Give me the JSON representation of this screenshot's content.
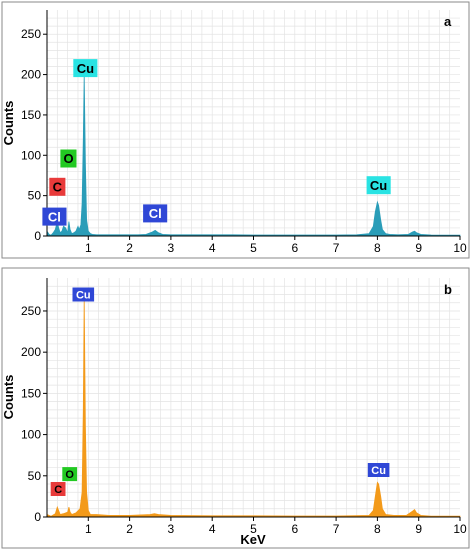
{
  "chart_data": [
    {
      "type": "area",
      "panel_letter": "a",
      "ylabel": "Counts",
      "xlabel": "",
      "xlim": [
        0,
        10
      ],
      "ylim": [
        0,
        280
      ],
      "xticks": [
        "1",
        "2",
        "3",
        "4",
        "5",
        "6",
        "7",
        "8",
        "9",
        "10"
      ],
      "yticks": [
        "0",
        "50",
        "100",
        "150",
        "200",
        "250"
      ],
      "grid": true,
      "fill_color": "#2a9db8",
      "series": [
        {
          "x": [
            0.0,
            0.05,
            0.1,
            0.15,
            0.2,
            0.25,
            0.28,
            0.32,
            0.36,
            0.4,
            0.45,
            0.5,
            0.53,
            0.56,
            0.6,
            0.65,
            0.7,
            0.75,
            0.78,
            0.82,
            0.85,
            0.88,
            0.9,
            0.93,
            0.96,
            1.0,
            1.05,
            1.1,
            1.2,
            1.4,
            1.6,
            1.8,
            2.0,
            2.2,
            2.4,
            2.55,
            2.62,
            2.7,
            2.8,
            3.0,
            3.5,
            4.0,
            4.5,
            5.0,
            5.5,
            6.0,
            6.5,
            7.0,
            7.5,
            7.8,
            7.9,
            7.95,
            8.0,
            8.03,
            8.08,
            8.12,
            8.2,
            8.3,
            8.5,
            8.75,
            8.85,
            8.9,
            8.95,
            9.05,
            9.3,
            9.6,
            10.0
          ],
          "y": [
            6,
            2,
            1,
            4,
            8,
            18,
            10,
            4,
            6,
            12,
            10,
            4,
            18,
            8,
            3,
            4,
            6,
            12,
            8,
            14,
            40,
            120,
            200,
            90,
            20,
            6,
            3,
            2,
            1.5,
            1.5,
            1.5,
            1.5,
            1.5,
            1.5,
            2,
            5,
            7,
            4,
            2,
            1.5,
            1.5,
            1.5,
            1.5,
            1.2,
            1.2,
            1.2,
            1.2,
            1.2,
            1.5,
            3,
            12,
            30,
            42,
            38,
            20,
            8,
            3,
            2,
            1.5,
            2,
            5,
            6,
            4,
            2,
            1.2,
            1,
            1
          ]
        }
      ],
      "annotations": [
        {
          "text": "Cu",
          "x": 0.93,
          "y": 208,
          "bg": "#29e3e3",
          "fg": "#000000"
        },
        {
          "text": "O",
          "x": 0.52,
          "y": 96,
          "bg": "#22c922",
          "fg": "#000000"
        },
        {
          "text": "C",
          "x": 0.25,
          "y": 61,
          "bg": "#e83a3a",
          "fg": "#000000"
        },
        {
          "text": "Cl",
          "x": 0.18,
          "y": 24,
          "bg": "#2f47d6",
          "fg": "#ffffff"
        },
        {
          "text": "Cl",
          "x": 2.62,
          "y": 28,
          "bg": "#2f47d6",
          "fg": "#ffffff"
        },
        {
          "text": "Cu",
          "x": 8.03,
          "y": 63,
          "bg": "#29e3e3",
          "fg": "#000000"
        }
      ]
    },
    {
      "type": "area",
      "panel_letter": "b",
      "ylabel": "Counts",
      "xlabel": "KeV",
      "xlim": [
        0,
        10
      ],
      "ylim": [
        0,
        290
      ],
      "xticks": [
        "1",
        "2",
        "3",
        "4",
        "5",
        "6",
        "7",
        "8",
        "9",
        "10"
      ],
      "yticks": [
        "0",
        "50",
        "100",
        "150",
        "200",
        "250"
      ],
      "grid": true,
      "fill_color": "#f39a1a",
      "series": [
        {
          "x": [
            0.0,
            0.1,
            0.2,
            0.25,
            0.28,
            0.32,
            0.4,
            0.5,
            0.53,
            0.56,
            0.6,
            0.7,
            0.8,
            0.85,
            0.88,
            0.9,
            0.93,
            0.96,
            1.0,
            1.05,
            1.2,
            1.5,
            2.0,
            2.5,
            2.6,
            2.7,
            3.0,
            4.0,
            5.0,
            6.0,
            7.0,
            7.8,
            7.9,
            7.95,
            8.0,
            8.03,
            8.08,
            8.12,
            8.2,
            8.4,
            8.7,
            8.85,
            8.9,
            8.95,
            9.05,
            9.3,
            10.0
          ],
          "y": [
            3,
            1,
            4,
            12,
            8,
            3,
            4,
            6,
            12,
            6,
            3,
            5,
            10,
            30,
            130,
            268,
            110,
            30,
            8,
            3,
            3,
            2,
            2,
            3,
            4,
            3,
            2,
            1.5,
            1.5,
            1.2,
            1.2,
            2,
            8,
            25,
            42,
            40,
            25,
            10,
            3,
            2,
            2,
            7,
            9,
            5,
            2,
            1,
            1
          ]
        }
      ],
      "annotations": [
        {
          "text": "Cu",
          "x": 0.88,
          "y": 270,
          "bg": "#2f47d6",
          "fg": "#ffffff"
        },
        {
          "text": "O",
          "x": 0.55,
          "y": 52,
          "bg": "#22c922",
          "fg": "#000000"
        },
        {
          "text": "C",
          "x": 0.27,
          "y": 34,
          "bg": "#e83a3a",
          "fg": "#000000"
        },
        {
          "text": "Cu",
          "x": 8.03,
          "y": 57,
          "bg": "#2f47d6",
          "fg": "#ffffff"
        }
      ]
    }
  ]
}
